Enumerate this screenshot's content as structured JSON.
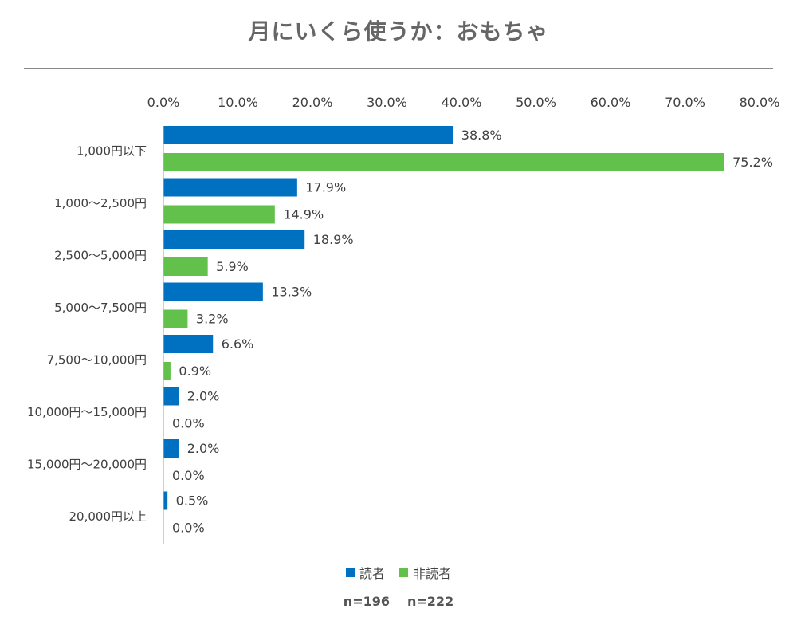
{
  "title": "月にいくら使うか：おもちゃ",
  "sample_sizes": [
    "n=196",
    "n=222"
  ],
  "colors": {
    "読者": "#0070c0",
    "非読者": "#62c14a",
    "axis": "#bfbfbf",
    "text": "#404040"
  },
  "chart_data": {
    "type": "bar",
    "orientation": "horizontal",
    "categories": [
      "1,000円以下",
      "1,000〜2,500円",
      "2,500〜5,000円",
      "5,000〜7,500円",
      "7,500〜10,000円",
      "10,000円〜15,000円",
      "15,000円〜20,000円",
      "20,000円以上"
    ],
    "series": [
      {
        "name": "読者",
        "values": [
          38.8,
          17.9,
          18.9,
          13.3,
          6.6,
          2.0,
          2.0,
          0.5
        ]
      },
      {
        "name": "非読者",
        "values": [
          75.2,
          14.9,
          5.9,
          3.2,
          0.9,
          0.0,
          0.0,
          0.0
        ]
      }
    ],
    "value_labels": [
      [
        "38.8%",
        "17.9%",
        "18.9%",
        "13.3%",
        "6.6%",
        "2.0%",
        "2.0%",
        "0.5%"
      ],
      [
        "75.2%",
        "14.9%",
        "5.9%",
        "3.2%",
        "0.9%",
        "0.0%",
        "0.0%",
        "0.0%"
      ]
    ],
    "x_ticks": [
      "0.0%",
      "10.0%",
      "20.0%",
      "30.0%",
      "40.0%",
      "50.0%",
      "60.0%",
      "70.0%",
      "80.0%"
    ],
    "xlim": [
      0,
      80
    ],
    "axis_position": "top",
    "legend_position": "bottom",
    "grid": false
  }
}
